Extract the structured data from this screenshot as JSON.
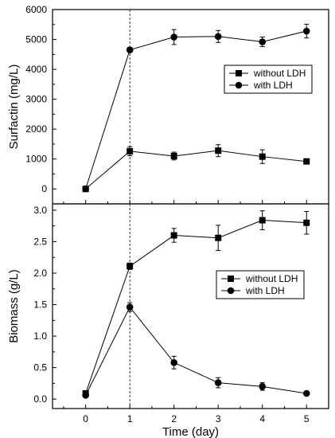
{
  "chart_data": [
    {
      "type": "line",
      "panel": "top",
      "x": [
        0,
        1,
        2,
        3,
        4,
        5
      ],
      "xlim": [
        -0.75,
        5.5
      ],
      "ylim": [
        -500,
        6000
      ],
      "xticks": [
        0,
        1,
        2,
        3,
        4,
        5
      ],
      "yticks": [
        0,
        1000,
        2000,
        3000,
        4000,
        5000,
        6000
      ],
      "xtick_labels": [
        "0",
        "1",
        "2",
        "3",
        "4",
        "5"
      ],
      "ytick_labels": [
        "0",
        "1000",
        "2000",
        "3000",
        "4000",
        "5000",
        "6000"
      ],
      "xlabel": "",
      "ylabel": "Surfactin (mg/L)",
      "vline_x": 1,
      "legend_position": "middle-right",
      "grid": false,
      "series": [
        {
          "name": "without LDH",
          "marker": "square",
          "values": [
            0,
            1260,
            1100,
            1280,
            1080,
            920
          ],
          "errors": [
            60,
            150,
            130,
            200,
            230,
            70
          ]
        },
        {
          "name": "with LDH",
          "marker": "circle",
          "values": [
            0,
            4650,
            5080,
            5100,
            4920,
            5280
          ],
          "errors": [
            60,
            80,
            250,
            200,
            160,
            230
          ]
        }
      ]
    },
    {
      "type": "line",
      "panel": "bottom",
      "x": [
        0,
        1,
        2,
        3,
        4,
        5
      ],
      "xlim": [
        -0.75,
        5.5
      ],
      "ylim": [
        -0.15,
        3.1
      ],
      "xticks": [
        0,
        1,
        2,
        3,
        4,
        5
      ],
      "yticks": [
        0.0,
        0.5,
        1.0,
        1.5,
        2.0,
        2.5,
        3.0
      ],
      "xtick_labels": [
        "0",
        "1",
        "2",
        "3",
        "4",
        "5"
      ],
      "ytick_labels": [
        "0.0",
        "0.5",
        "1.0",
        "1.5",
        "2.0",
        "2.5",
        "3.0"
      ],
      "xlabel": "Time (day)",
      "ylabel": "Biomass (g/L)",
      "vline_x": 1,
      "legend_position": "middle-right",
      "grid": false,
      "series": [
        {
          "name": "without LDH",
          "marker": "square",
          "values": [
            0.09,
            2.11,
            2.6,
            2.56,
            2.84,
            2.8
          ],
          "errors": [
            0.03,
            0.05,
            0.11,
            0.2,
            0.15,
            0.18
          ]
        },
        {
          "name": "with LDH",
          "marker": "circle",
          "values": [
            0.06,
            1.46,
            0.58,
            0.26,
            0.2,
            0.09
          ],
          "errors": [
            0.03,
            0.07,
            0.1,
            0.08,
            0.06,
            0.02
          ]
        }
      ]
    }
  ]
}
